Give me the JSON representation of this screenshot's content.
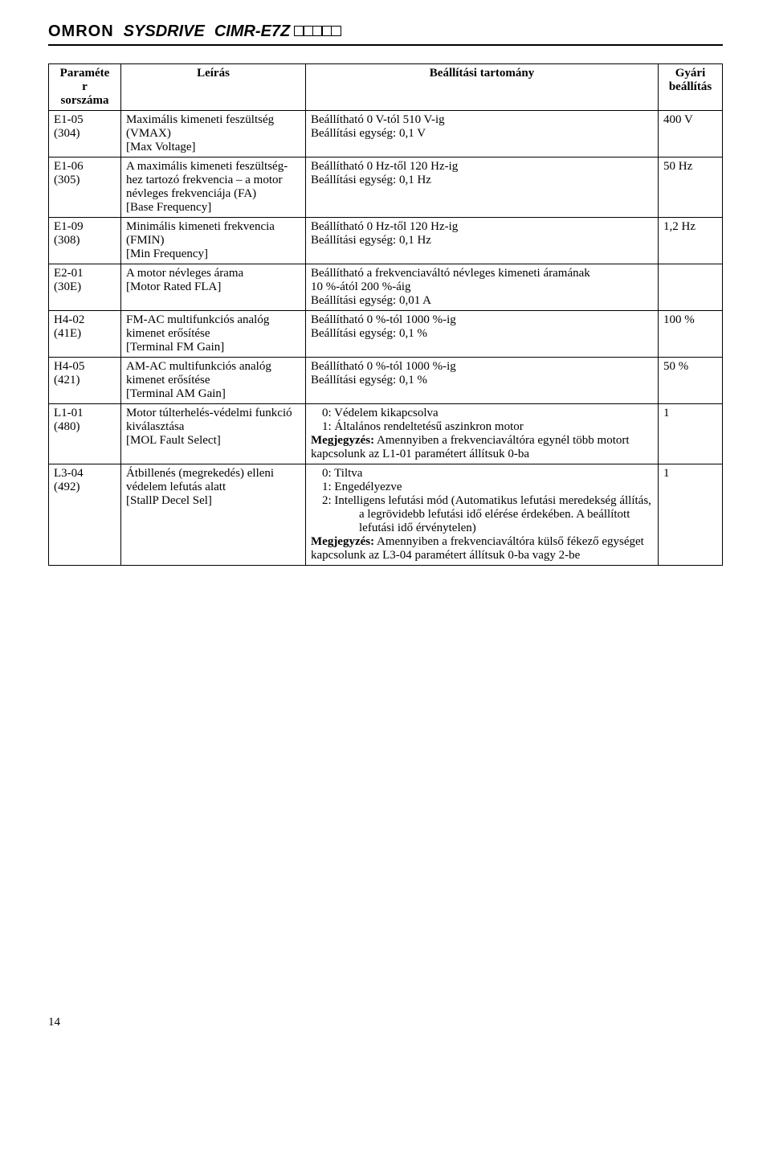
{
  "header": {
    "brand": "OMRON",
    "product": "SYSDRIVE",
    "model_prefix": "CIMR-E7Z"
  },
  "table": {
    "headers": {
      "param": "Paraméte\nr\nsorszáma",
      "desc": "Leírás",
      "range": "Beállítási tartomány",
      "def": "Gyári\nbeállítás"
    },
    "rows": [
      {
        "param": "E1-05\n(304)",
        "desc": "Maximális kimeneti feszültség (VMAX)\n[Max Voltage]",
        "range": "Beállítható 0 V-tól 510 V-ig\nBeállítási egység: 0,1 V",
        "def": "400 V"
      },
      {
        "param": "E1-06\n(305)",
        "desc": "A maximális kimeneti feszültség-hez tartozó frekvencia – a motor névleges frekvenciája (FA)\n[Base Frequency]",
        "range": "Beállítható 0 Hz-től 120 Hz-ig\nBeállítási egység: 0,1 Hz",
        "def": "50 Hz"
      },
      {
        "param": "E1-09\n(308)",
        "desc": "Minimális kimeneti frekvencia (FMIN)\n[Min Frequency]",
        "range": "Beállítható 0 Hz-től 120 Hz-ig\nBeállítási egység: 0,1 Hz",
        "def": "1,2 Hz"
      },
      {
        "param": "E2-01\n(30E)",
        "desc": "A motor névleges árama\n[Motor Rated FLA]",
        "range": "Beállítható a frekvenciaváltó névleges kimeneti áramának\n10 %-ától 200 %-áig\nBeállítási egység: 0,01 A",
        "def": ""
      },
      {
        "param": "H4-02\n(41E)",
        "desc": "FM-AC multifunkciós analóg kimenet erősítése\n[Terminal FM Gain]",
        "range": "Beállítható 0 %-tól 1000 %-ig\nBeállítási egység: 0,1 %",
        "def": "100 %"
      },
      {
        "param": "H4-05\n(421)",
        "desc": "AM-AC multifunkciós analóg kimenet erősítése\n[Terminal AM Gain]",
        "range": "Beállítható 0 %-tól 1000 %-ig\nBeállítási egység: 0,1 %",
        "def": "50 %"
      },
      {
        "param": "L1-01\n(480)",
        "desc": "Motor túlterhelés-védelmi funkció kiválasztása\n[MOL Fault Select]",
        "range_list": [
          "0:      Védelem kikapcsolva",
          "1:      Általános rendeltetésű aszinkron motor"
        ],
        "range_note": "Megjegyzés: Amennyiben a frekvenciaváltóra egynél több motort kapcsolunk az L1-01 paramétert állítsuk 0-ba",
        "def": "1"
      },
      {
        "param": "L3-04\n(492)",
        "desc": "Átbillenés (megrekedés) elleni védelem lefutás alatt\n[StallP Decel Sel]",
        "range_list": [
          "0:      Tiltva",
          "1:      Engedélyezve",
          "2:      Intelligens lefutási mód (Automatikus lefutási meredekség állítás, a legrövidebb lefutási idő elérése érdekében. A beállított lefutási idő érvénytelen)"
        ],
        "range_note": "Megjegyzés: Amennyiben a frekvenciaváltóra külső fékező egységet kapcsolunk az L3-04 paramétert állítsuk 0-ba vagy 2-be",
        "def": "1"
      }
    ]
  },
  "footer": {
    "page_number": "14"
  }
}
